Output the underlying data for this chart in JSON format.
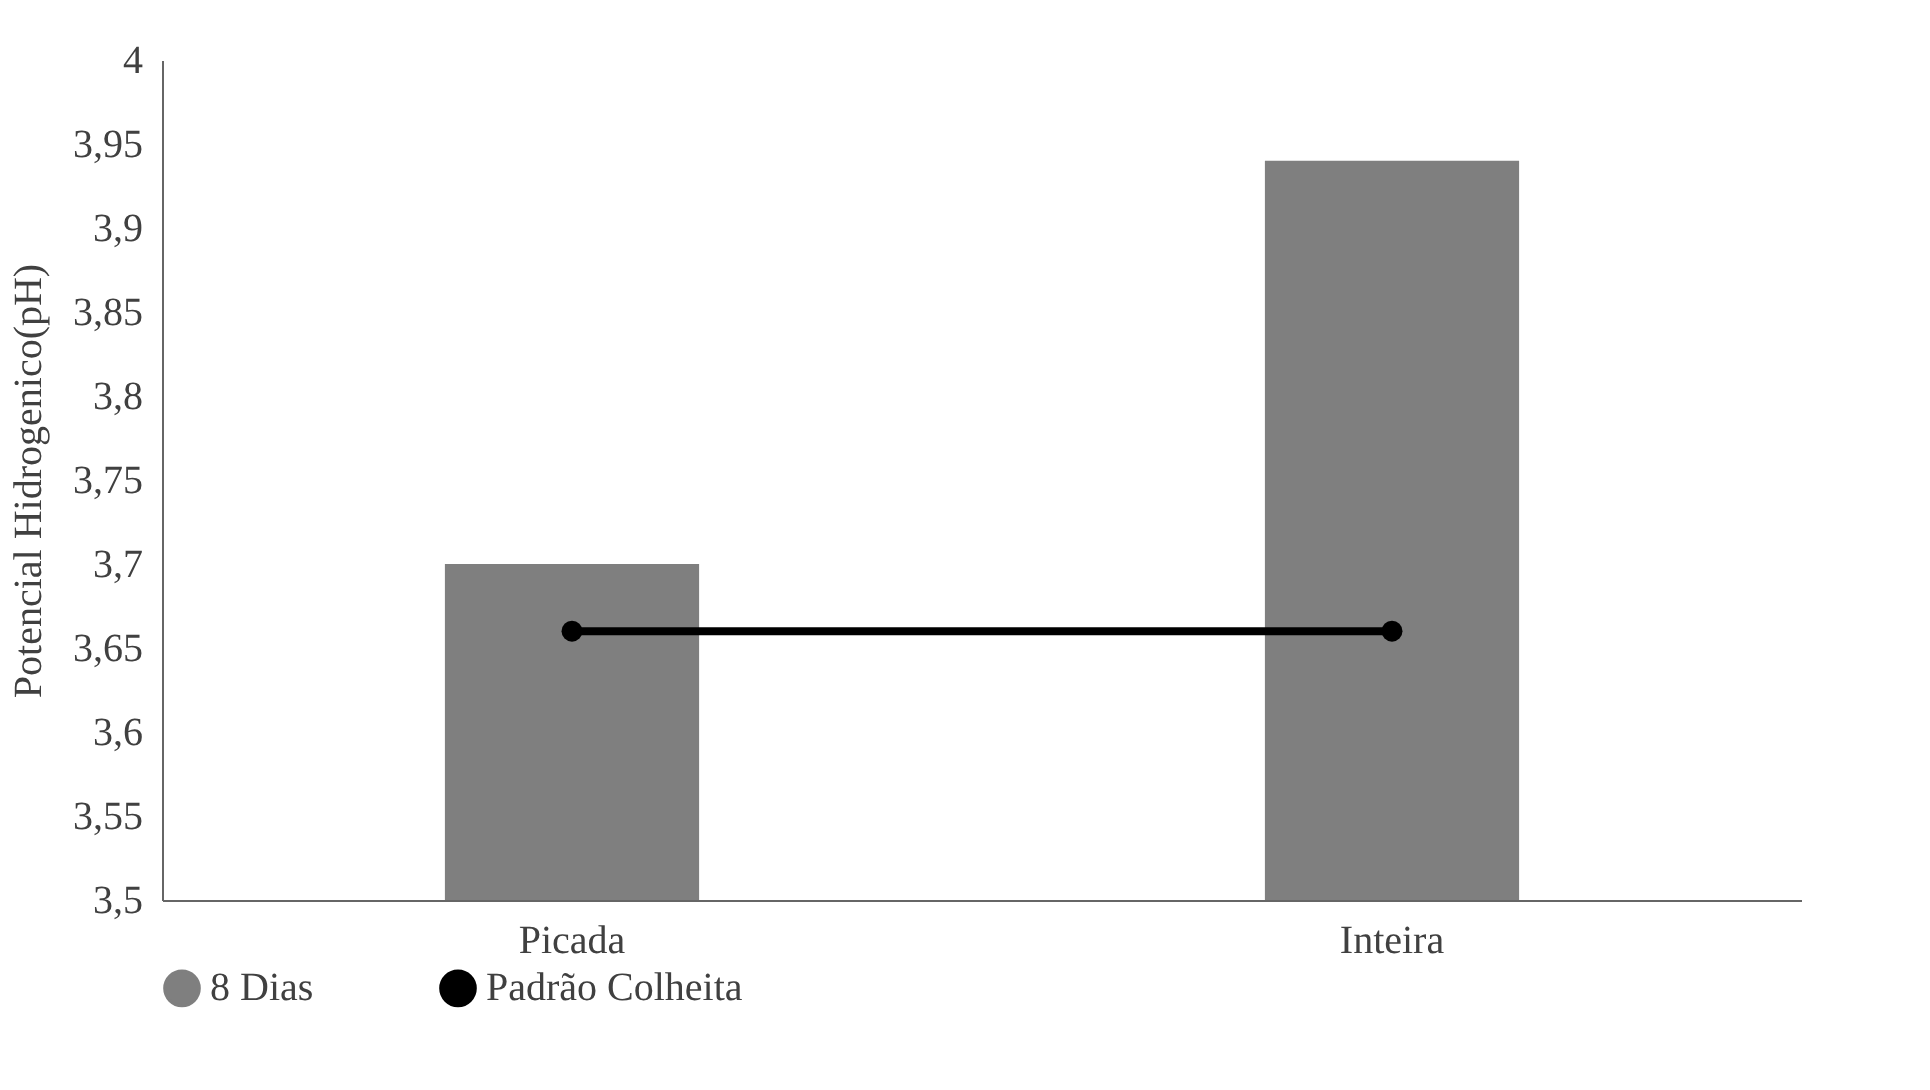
{
  "chart_data": {
    "type": "bar",
    "ylabel": "Potencial Hidrogenico(pH)",
    "categories": [
      "Picada",
      "Inteira"
    ],
    "series": [
      {
        "name": "8 Dias",
        "color": "#7f7f7f",
        "values": [
          3.7,
          3.94
        ]
      },
      {
        "name": "Padrão Colheita",
        "type": "line",
        "color": "#000000",
        "marker": "circle",
        "values": [
          3.66,
          3.66
        ]
      }
    ],
    "ylim": [
      3.5,
      4
    ],
    "yticks": [
      {
        "value": 3.5,
        "label": "3,5"
      },
      {
        "value": 3.55,
        "label": "3,55"
      },
      {
        "value": 3.6,
        "label": "3,6"
      },
      {
        "value": 3.65,
        "label": "3,65"
      },
      {
        "value": 3.7,
        "label": "3,7"
      },
      {
        "value": 3.75,
        "label": "3,75"
      },
      {
        "value": 3.8,
        "label": "3,8"
      },
      {
        "value": 3.85,
        "label": "3,85"
      },
      {
        "value": 3.9,
        "label": "3,9"
      },
      {
        "value": 3.95,
        "label": "3,95"
      },
      {
        "value": 4,
        "label": "4"
      }
    ],
    "legend": "bottom",
    "grid": false
  }
}
